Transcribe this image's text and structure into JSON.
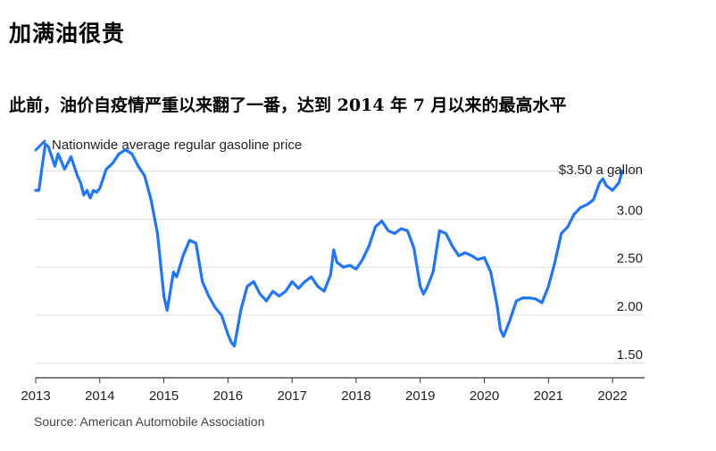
{
  "headline": "加满油很贵",
  "subheadline": "此前，油价自疫情严重以来翻了一番，达到 2014 年 7 月以来的最高水平",
  "legend_label": "Nationwide average regular gasoline price",
  "source": "Source: American Automobile Association",
  "colors": {
    "line": "#1f75fe",
    "grid": "#dddddd",
    "axis": "#333333"
  },
  "chart_data": {
    "type": "line",
    "title": "",
    "xlabel": "",
    "ylabel": "",
    "xlim": [
      2013,
      2022.5
    ],
    "ylim": [
      1.35,
      3.7
    ],
    "xticks": [
      2013,
      2014,
      2015,
      2016,
      2017,
      2018,
      2019,
      2020,
      2021,
      2022
    ],
    "yticks": [
      1.5,
      2.0,
      2.5,
      3.0
    ],
    "ytick_labels": [
      "1.50",
      "2.00",
      "2.50",
      "3.00"
    ],
    "end_annotation": "$3.50 a gallon",
    "series": [
      {
        "name": "Nationwide average regular gasoline price",
        "x": [
          2013.0,
          2013.05,
          2013.1,
          2013.15,
          2013.2,
          2013.25,
          2013.3,
          2013.35,
          2013.4,
          2013.45,
          2013.5,
          2013.55,
          2013.6,
          2013.65,
          2013.7,
          2013.75,
          2013.8,
          2013.85,
          2013.9,
          2013.95,
          2014.0,
          2014.1,
          2014.2,
          2014.3,
          2014.4,
          2014.5,
          2014.6,
          2014.7,
          2014.8,
          2014.9,
          2015.0,
          2015.05,
          2015.1,
          2015.15,
          2015.2,
          2015.3,
          2015.4,
          2015.5,
          2015.55,
          2015.6,
          2015.7,
          2015.8,
          2015.9,
          2016.0,
          2016.05,
          2016.1,
          2016.2,
          2016.3,
          2016.4,
          2016.5,
          2016.6,
          2016.7,
          2016.8,
          2016.9,
          2017.0,
          2017.1,
          2017.2,
          2017.3,
          2017.4,
          2017.5,
          2017.6,
          2017.65,
          2017.7,
          2017.8,
          2017.9,
          2018.0,
          2018.1,
          2018.2,
          2018.3,
          2018.4,
          2018.5,
          2018.6,
          2018.7,
          2018.8,
          2018.9,
          2019.0,
          2019.05,
          2019.1,
          2019.2,
          2019.3,
          2019.4,
          2019.5,
          2019.6,
          2019.7,
          2019.8,
          2019.9,
          2020.0,
          2020.1,
          2020.2,
          2020.25,
          2020.3,
          2020.4,
          2020.5,
          2020.6,
          2020.7,
          2020.8,
          2020.9,
          2021.0,
          2021.1,
          2021.2,
          2021.3,
          2021.4,
          2021.5,
          2021.6,
          2021.7,
          2021.8,
          2021.85,
          2021.9,
          2022.0,
          2022.1,
          2022.15
        ],
        "values": [
          3.3,
          3.3,
          3.55,
          3.78,
          3.75,
          3.65,
          3.55,
          3.68,
          3.6,
          3.52,
          3.58,
          3.65,
          3.55,
          3.45,
          3.38,
          3.25,
          3.3,
          3.22,
          3.3,
          3.28,
          3.32,
          3.52,
          3.58,
          3.68,
          3.72,
          3.68,
          3.55,
          3.45,
          3.2,
          2.85,
          2.2,
          2.05,
          2.25,
          2.45,
          2.4,
          2.62,
          2.78,
          2.75,
          2.55,
          2.35,
          2.2,
          2.08,
          2.0,
          1.8,
          1.72,
          1.68,
          2.05,
          2.3,
          2.35,
          2.22,
          2.15,
          2.25,
          2.2,
          2.25,
          2.35,
          2.28,
          2.35,
          2.4,
          2.3,
          2.25,
          2.42,
          2.68,
          2.55,
          2.5,
          2.52,
          2.48,
          2.58,
          2.72,
          2.92,
          2.98,
          2.88,
          2.85,
          2.9,
          2.88,
          2.7,
          2.3,
          2.22,
          2.28,
          2.45,
          2.88,
          2.85,
          2.72,
          2.62,
          2.65,
          2.62,
          2.58,
          2.6,
          2.45,
          2.1,
          1.85,
          1.78,
          1.95,
          2.15,
          2.18,
          2.18,
          2.17,
          2.13,
          2.3,
          2.55,
          2.85,
          2.92,
          3.05,
          3.12,
          3.15,
          3.2,
          3.38,
          3.42,
          3.35,
          3.3,
          3.38,
          3.5
        ]
      }
    ]
  }
}
